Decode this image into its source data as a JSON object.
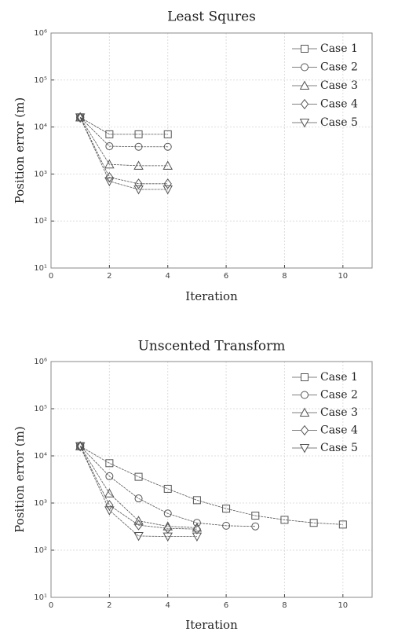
{
  "chart_data": [
    {
      "type": "line",
      "title": "Least Squres",
      "x_label": "Iteration",
      "y_label": "Position error (m)",
      "log_y": true,
      "grid": true,
      "legend": "upper right",
      "x": [
        1,
        2,
        3,
        4,
        5,
        6,
        7,
        8,
        9,
        10
      ],
      "xlim": [
        0,
        11
      ],
      "xticks": [
        0,
        2,
        4,
        6,
        8,
        10
      ],
      "ylim": [
        10,
        1000000
      ],
      "yticks": [
        {
          "value": 10,
          "label": "10¹"
        },
        {
          "value": 100,
          "label": "10²"
        },
        {
          "value": 1000,
          "label": "10³"
        },
        {
          "value": 10000,
          "label": "10⁴"
        },
        {
          "value": 100000,
          "label": "10⁵"
        },
        {
          "value": 1000000,
          "label": "10⁶"
        }
      ],
      "series": [
        {
          "name": "Case 1",
          "color": "#555555",
          "marker": "square",
          "values": [
            16000,
            7000,
            7000,
            7000,
            null,
            null,
            null,
            null,
            null,
            null
          ]
        },
        {
          "name": "Case 2",
          "color": "#555555",
          "marker": "circle",
          "values": [
            16000,
            3900,
            3800,
            3800,
            null,
            null,
            null,
            null,
            null,
            null
          ]
        },
        {
          "name": "Case 3",
          "color": "#555555",
          "marker": "triangle-up",
          "values": [
            16000,
            1600,
            1500,
            1500,
            null,
            null,
            null,
            null,
            null,
            null
          ]
        },
        {
          "name": "Case 4",
          "color": "#555555",
          "marker": "diamond",
          "values": [
            16000,
            850,
            620,
            620,
            null,
            null,
            null,
            null,
            null,
            null
          ]
        },
        {
          "name": "Case 5",
          "color": "#555555",
          "marker": "triangle-down",
          "values": [
            16000,
            700,
            470,
            470,
            null,
            null,
            null,
            null,
            null,
            null
          ]
        }
      ]
    },
    {
      "type": "line",
      "title": "Unscented Transform",
      "x_label": "Iteration",
      "y_label": "Position error (m)",
      "log_y": true,
      "grid": true,
      "legend": "upper right",
      "x": [
        1,
        2,
        3,
        4,
        5,
        6,
        7,
        8,
        9,
        10
      ],
      "xlim": [
        0,
        11
      ],
      "xticks": [
        0,
        2,
        4,
        6,
        8,
        10
      ],
      "ylim": [
        10,
        1000000
      ],
      "yticks": [
        {
          "value": 10,
          "label": "10¹"
        },
        {
          "value": 100,
          "label": "10²"
        },
        {
          "value": 1000,
          "label": "10³"
        },
        {
          "value": 10000,
          "label": "10⁴"
        },
        {
          "value": 100000,
          "label": "10⁵"
        },
        {
          "value": 1000000,
          "label": "10⁶"
        }
      ],
      "series": [
        {
          "name": "Case 1",
          "color": "#555555",
          "marker": "square",
          "values": [
            16000,
            7000,
            3600,
            2000,
            1150,
            760,
            540,
            440,
            380,
            350
          ]
        },
        {
          "name": "Case 2",
          "color": "#555555",
          "marker": "circle",
          "values": [
            16000,
            3700,
            1250,
            600,
            380,
            330,
            320,
            null,
            null,
            null
          ]
        },
        {
          "name": "Case 3",
          "color": "#555555",
          "marker": "triangle-up",
          "values": [
            16000,
            1600,
            420,
            320,
            300,
            null,
            null,
            null,
            null,
            null
          ]
        },
        {
          "name": "Case 4",
          "color": "#555555",
          "marker": "diamond",
          "values": [
            16000,
            900,
            340,
            290,
            280,
            null,
            null,
            null,
            null,
            null
          ]
        },
        {
          "name": "Case 5",
          "color": "#555555",
          "marker": "triangle-down",
          "values": [
            16000,
            700,
            200,
            195,
            195,
            null,
            null,
            null,
            null,
            null
          ]
        }
      ]
    }
  ]
}
